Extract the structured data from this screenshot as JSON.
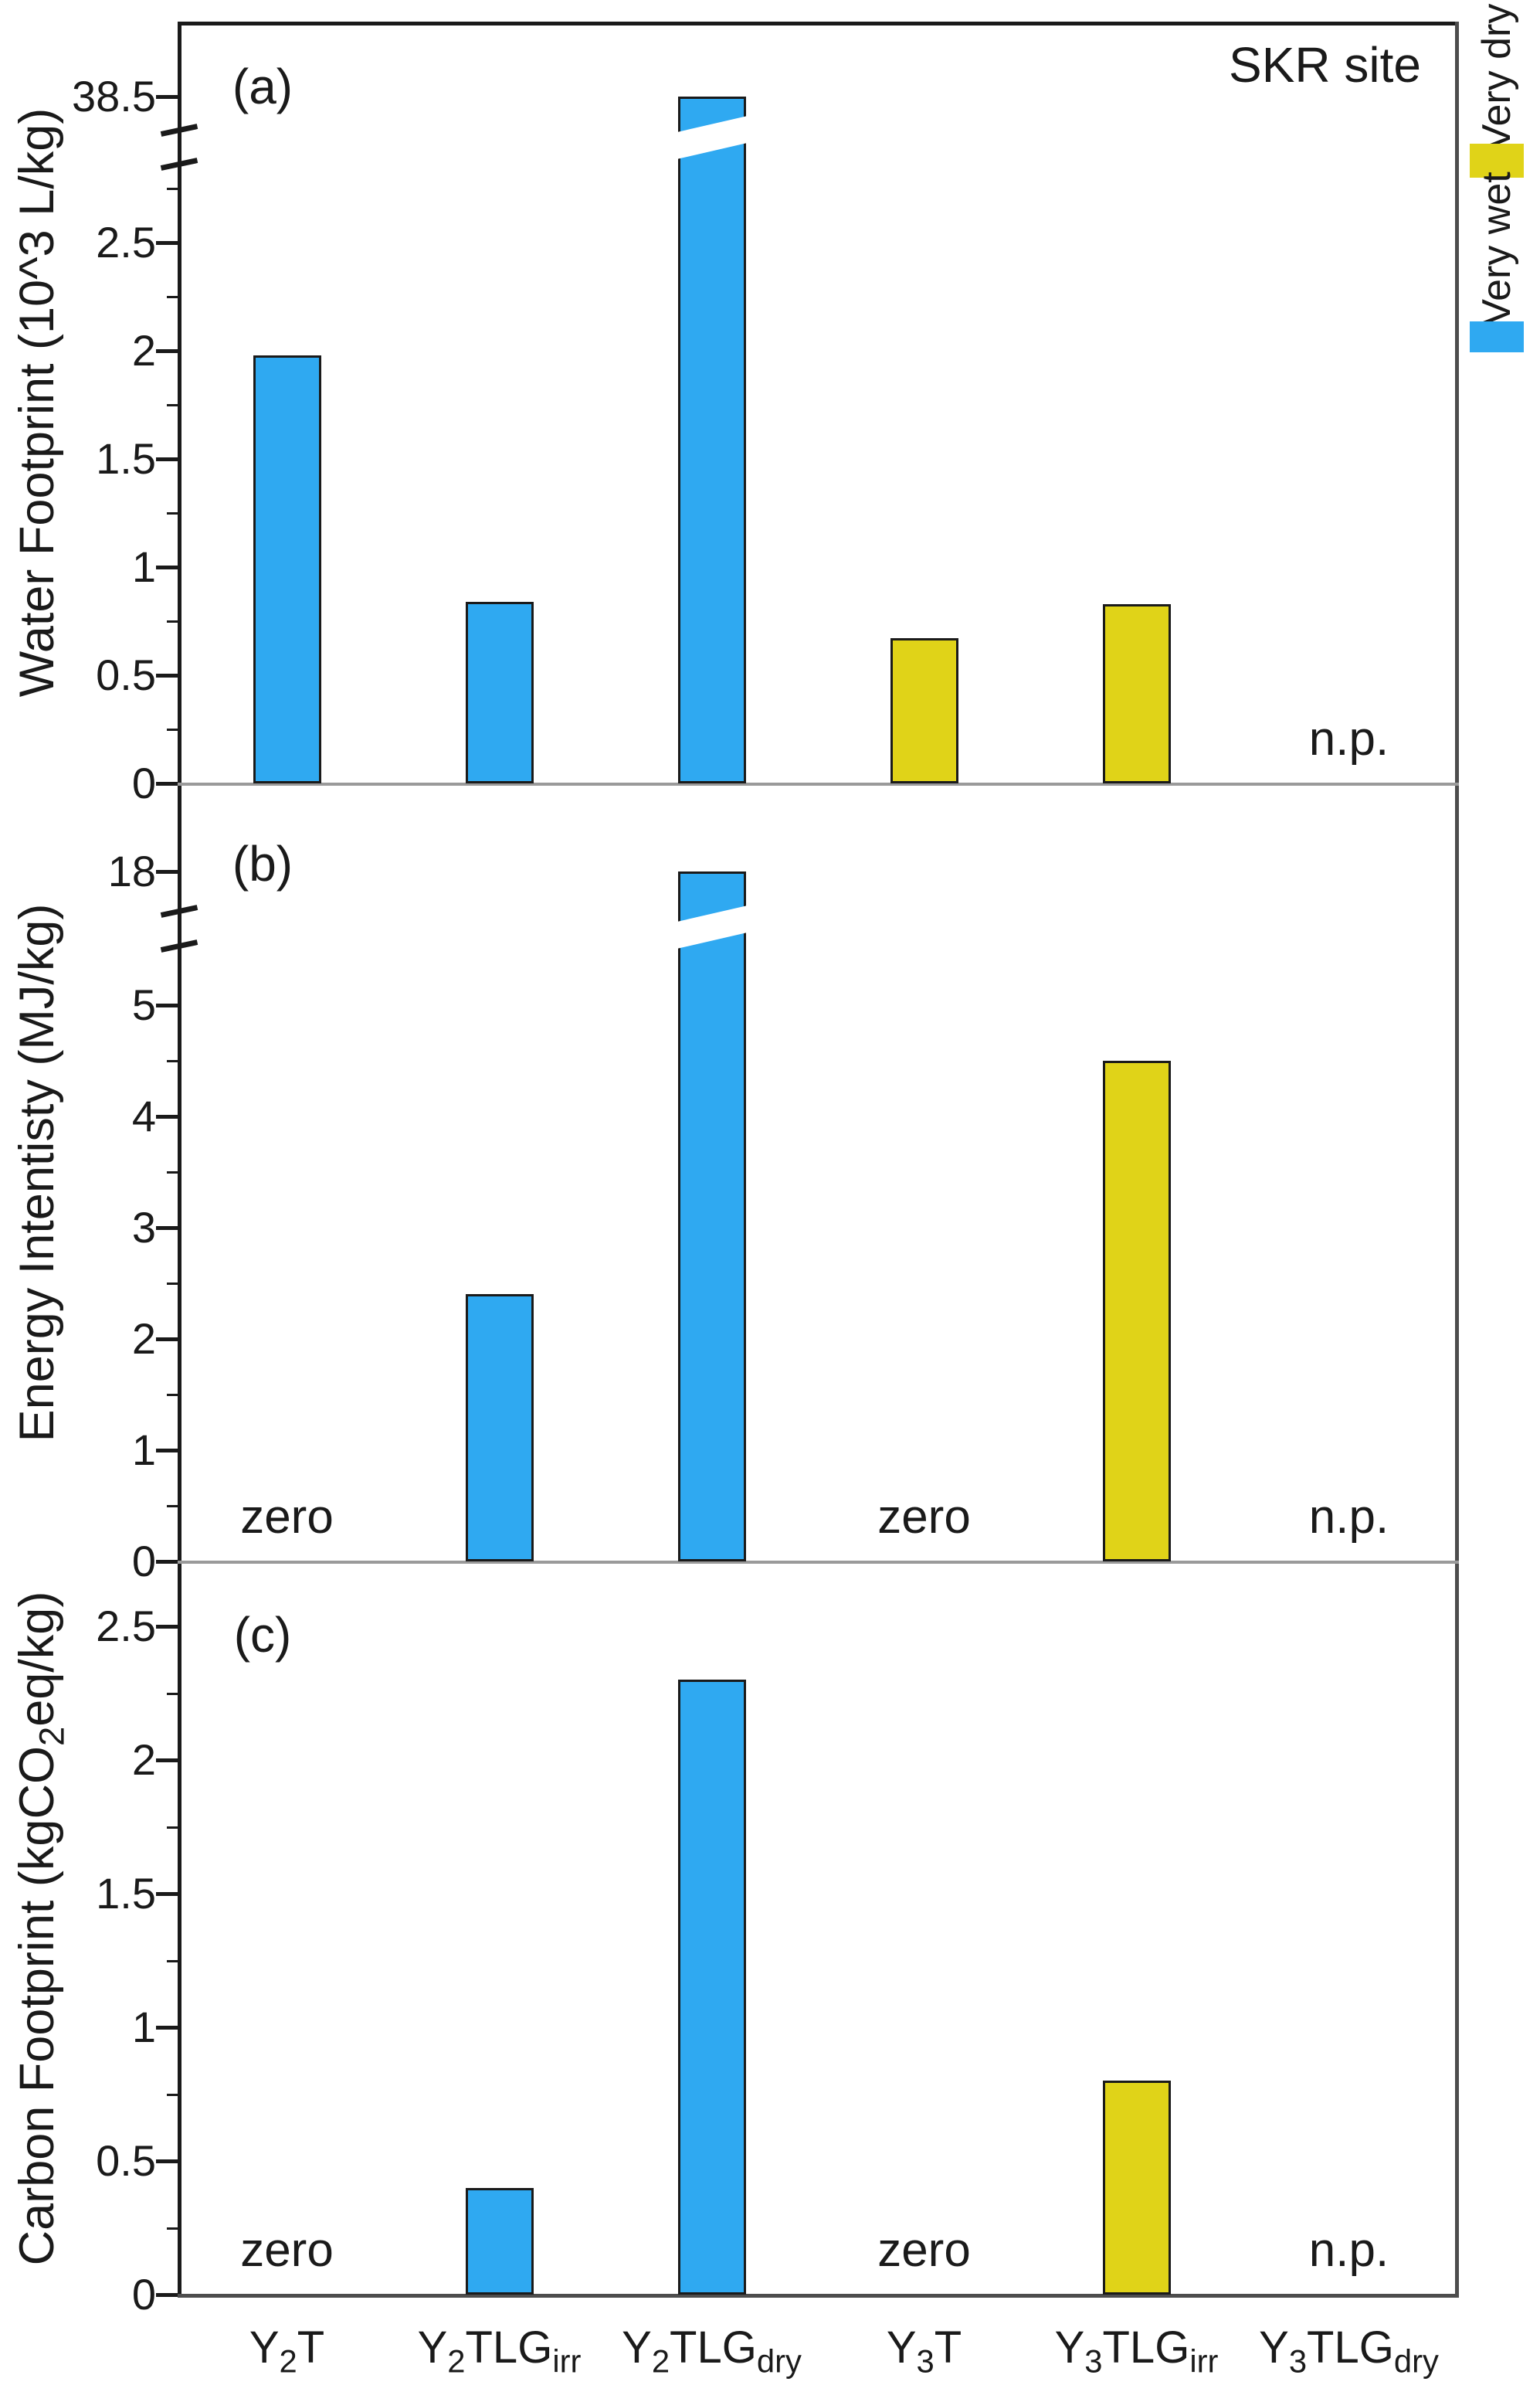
{
  "site_label": "SKR site",
  "legend": {
    "items": [
      {
        "label": "Very dry",
        "color": "#e0d318"
      },
      {
        "label": "Very wet",
        "color": "#2fa9f1"
      }
    ]
  },
  "annotations_lexicon": {
    "zero": "zero",
    "not_produced": "n.p."
  },
  "x_axis": {
    "categories": [
      "Y2T",
      "Y2TLGirr",
      "Y2TLGdry",
      "Y3T",
      "Y3TLGirr",
      "Y3TLGdry"
    ],
    "label_segments": [
      [
        {
          "t": "Y"
        },
        {
          "t": "2",
          "sub": true
        },
        {
          "t": "T"
        }
      ],
      [
        {
          "t": "Y"
        },
        {
          "t": "2",
          "sub": true
        },
        {
          "t": "TLG"
        },
        {
          "t": "irr",
          "sub": true
        }
      ],
      [
        {
          "t": "Y"
        },
        {
          "t": "2",
          "sub": true
        },
        {
          "t": "TLG"
        },
        {
          "t": "dry",
          "sub": true
        }
      ],
      [
        {
          "t": "Y"
        },
        {
          "t": "3",
          "sub": true
        },
        {
          "t": "T"
        }
      ],
      [
        {
          "t": "Y"
        },
        {
          "t": "3",
          "sub": true
        },
        {
          "t": "TLG"
        },
        {
          "t": "irr",
          "sub": true
        }
      ],
      [
        {
          "t": "Y"
        },
        {
          "t": "3",
          "sub": true
        },
        {
          "t": "TLG"
        },
        {
          "t": "dry",
          "sub": true
        }
      ]
    ]
  },
  "chart_data": [
    {
      "type": "bar",
      "panel_label": "(a)",
      "ylabel": "Water Footprint (10^3 L/kg)",
      "ylabel_segments": [
        {
          "t": "Water Footprint (10^3 L/kg)"
        }
      ],
      "categories": [
        "Y2T",
        "Y2TLGirr",
        "Y2TLGdry",
        "Y3T",
        "Y3TLGirr",
        "Y3TLGdry"
      ],
      "values": [
        1.98,
        0.84,
        38.5,
        0.67,
        0.83,
        null
      ],
      "bar_conditions": [
        "Very wet",
        "Very wet",
        "Very wet",
        "Very dry",
        "Very dry",
        null
      ],
      "bar_annotations": [
        null,
        null,
        null,
        null,
        null,
        "n.p."
      ],
      "broken_bars": [
        2
      ],
      "axis_break": true,
      "upper_tick_label": "38.5",
      "ytick_labels": [
        "0",
        "0.5",
        "1",
        "1.5",
        "2",
        "2.5"
      ],
      "ytick_values": [
        0,
        0.5,
        1,
        1.5,
        2,
        2.5
      ],
      "minor_tick_step": 0.25,
      "minor_tick_max": 2.8,
      "ylim_linear": [
        0,
        2.8
      ],
      "grid": false,
      "legend_position": "right-outside"
    },
    {
      "type": "bar",
      "panel_label": "(b)",
      "ylabel": "Energy Intentisty (MJ/kg)",
      "ylabel_segments": [
        {
          "t": "Energy Intentisty (MJ/kg)"
        }
      ],
      "categories": [
        "Y2T",
        "Y2TLGirr",
        "Y2TLGdry",
        "Y3T",
        "Y3TLGirr",
        "Y3TLGdry"
      ],
      "values": [
        null,
        2.4,
        18,
        null,
        4.5,
        null
      ],
      "bar_conditions": [
        null,
        "Very wet",
        "Very wet",
        null,
        "Very dry",
        null
      ],
      "bar_annotations": [
        "zero",
        null,
        null,
        "zero",
        null,
        "n.p."
      ],
      "broken_bars": [
        2
      ],
      "axis_break": true,
      "upper_tick_label": "18",
      "ytick_labels": [
        "0",
        "1",
        "2",
        "3",
        "4",
        "5"
      ],
      "ytick_values": [
        0,
        1,
        2,
        3,
        4,
        5
      ],
      "minor_tick_step": 0.5,
      "minor_tick_max": 5.0,
      "ylim_linear": [
        0,
        5.3
      ],
      "grid": false,
      "legend_position": "none"
    },
    {
      "type": "bar",
      "panel_label": "(c)",
      "ylabel": "Carbon Footprint (kgCO2eq/kg)",
      "ylabel_segments": [
        {
          "t": "Carbon Footprint (kgCO"
        },
        {
          "t": "2",
          "sub": true
        },
        {
          "t": "eq/kg)"
        }
      ],
      "categories": [
        "Y2T",
        "Y2TLGirr",
        "Y2TLGdry",
        "Y3T",
        "Y3TLGirr",
        "Y3TLGdry"
      ],
      "values": [
        null,
        0.4,
        2.3,
        null,
        0.8,
        null
      ],
      "bar_conditions": [
        null,
        "Very wet",
        "Very wet",
        null,
        "Very dry",
        null
      ],
      "bar_annotations": [
        "zero",
        null,
        null,
        "zero",
        null,
        "n.p."
      ],
      "broken_bars": [],
      "axis_break": false,
      "upper_tick_label": null,
      "ytick_labels": [
        "0",
        "0.5",
        "1",
        "1.5",
        "2",
        "2.5"
      ],
      "ytick_values": [
        0,
        0.5,
        1,
        1.5,
        2,
        2.5
      ],
      "minor_tick_step": 0.25,
      "minor_tick_max": 2.4,
      "ylim_linear": [
        0,
        2.7
      ],
      "grid": false,
      "legend_position": "none"
    }
  ]
}
